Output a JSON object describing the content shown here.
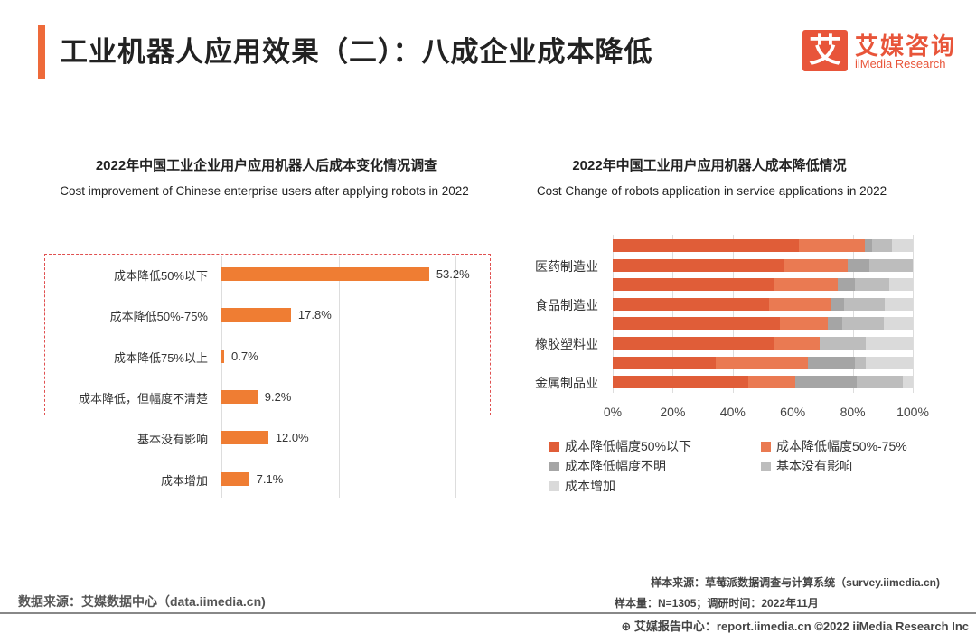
{
  "header": {
    "title": "工业机器人应用效果（二）：八成企业成本降低",
    "logo_mark": "艾",
    "logo_cn": "艾媒咨询",
    "logo_en": "iiMedia Research"
  },
  "chart_data": [
    {
      "type": "bar",
      "orientation": "horizontal",
      "title": "2022年中国工业企业用户应用机器人后成本变化情况调查",
      "subtitle": "Cost improvement of Chinese enterprise users after applying robots in 2022",
      "categories": [
        "成本降低50%以下",
        "成本降低50%-75%",
        "成本降低75%以上",
        "成本降低，但幅度不清楚",
        "基本没有影响",
        "成本增加"
      ],
      "values": [
        53.2,
        17.8,
        0.7,
        9.2,
        12.0,
        7.1
      ],
      "labels": [
        "53.2%",
        "17.8%",
        "0.7%",
        "9.2%",
        "12.0%",
        "7.1%"
      ],
      "unit": "%",
      "grid": true,
      "highlighted_categories": 4,
      "color": "#ef7d33"
    },
    {
      "type": "bar",
      "stacked": true,
      "orientation": "horizontal",
      "title": "2022年中国工业用户应用机器人成本降低情况",
      "subtitle": "Cost Change of robots application in service applications in 2022",
      "categories": [
        "",
        "医药制造业",
        "",
        "食品制造业",
        "",
        "橡胶塑料业",
        "",
        "金属制品业"
      ],
      "xticks": [
        "0%",
        "20%",
        "40%",
        "60%",
        "80%",
        "100%"
      ],
      "xlim": [
        0,
        100
      ],
      "legend": "bottom",
      "series": [
        {
          "name": "成本降低幅度50%以下",
          "color": "#e05d38",
          "values": [
            62.0,
            57.1,
            53.6,
            52.2,
            55.7,
            53.6,
            34.3,
            45.3
          ]
        },
        {
          "name": "成本降低幅度50%-75%",
          "color": "#ea7a52",
          "values": [
            22.0,
            21.2,
            21.4,
            20.4,
            16.1,
            15.5,
            30.7,
            15.5
          ]
        },
        {
          "name": "成本降低幅度不明",
          "color": "#a5a5a5",
          "values": [
            2.4,
            7.2,
            5.7,
            4.5,
            4.8,
            0,
            15.7,
            20.4
          ]
        },
        {
          "name": "基本没有影响",
          "color": "#bdbdbd",
          "values": [
            6.7,
            14.5,
            11.5,
            13.6,
            13.8,
            15.2,
            3.6,
            15.5
          ]
        },
        {
          "name": "成本增加",
          "color": "#dadada",
          "values": [
            6.9,
            0,
            7.8,
            9.3,
            9.6,
            15.7,
            15.7,
            3.3
          ]
        }
      ]
    }
  ],
  "footer": {
    "source_left": "数据来源：艾媒数据中心（data.iimedia.cn)",
    "sample_source": "样本来源：草莓派数据调查与计算系统（survey.iimedia.cn)",
    "sample_size": "样本量：N=1305；调研时间：2022年11月",
    "copyright": "艾媒报告中心：report.iimedia.cn   ©2022  iiMedia Research Inc"
  }
}
